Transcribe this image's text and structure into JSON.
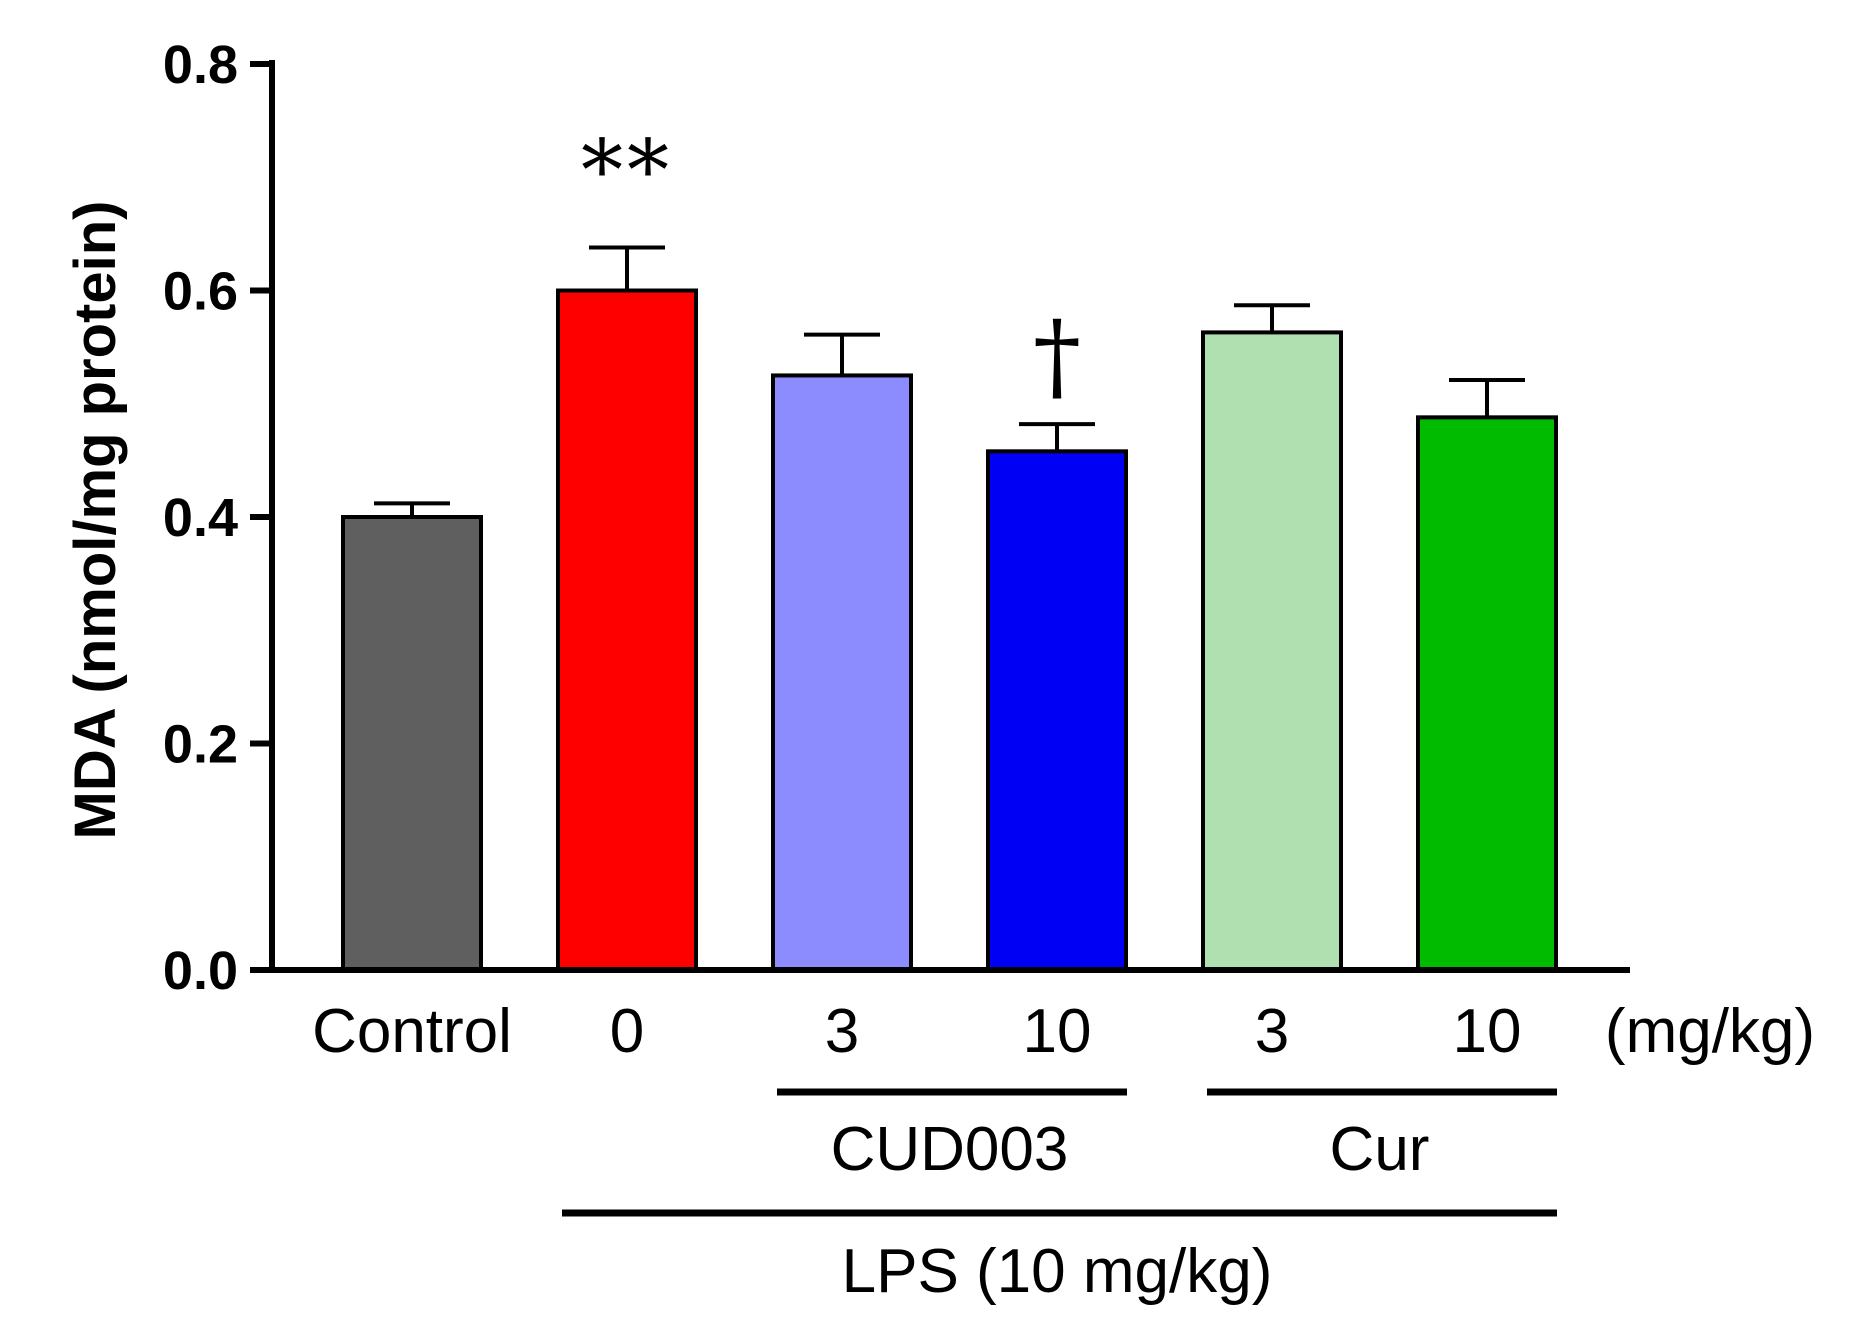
{
  "chart_data": {
    "type": "bar",
    "categories": [
      "Control",
      "0",
      "3",
      "10",
      "3",
      "10"
    ],
    "unit_label": "(mg/kg)",
    "values": [
      0.4,
      0.6,
      0.525,
      0.458,
      0.563,
      0.488
    ],
    "errors": [
      0.012,
      0.038,
      0.036,
      0.024,
      0.024,
      0.033
    ],
    "colors": [
      "#5f5f5f",
      "#ff0000",
      "#8c8cff",
      "#0000f5",
      "#b0e0b0",
      "#00bb00"
    ],
    "significance": [
      "",
      "**",
      "",
      "†",
      "",
      ""
    ],
    "ylabel": "MDA (nmol/mg protein)",
    "xlabel": "",
    "ylim": [
      0,
      0.8
    ],
    "yticks": [
      "0.0",
      "0.2",
      "0.4",
      "0.6",
      "0.8"
    ],
    "groups": [
      {
        "label": "CUD003",
        "from": 2,
        "to": 3,
        "level": 1
      },
      {
        "label": "Cur",
        "from": 4,
        "to": 5,
        "level": 1
      },
      {
        "label": "LPS (10 mg/kg)",
        "from": 1,
        "to": 5,
        "level": 2
      }
    ],
    "grid": false,
    "legend": "none"
  }
}
